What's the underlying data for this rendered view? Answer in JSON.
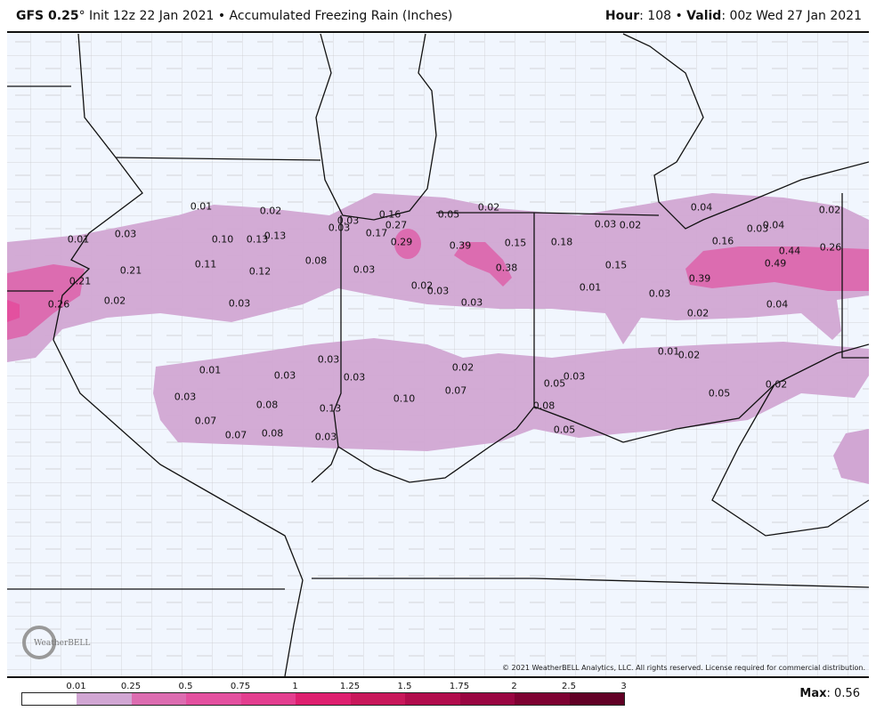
{
  "header": {
    "model": "GFS 0.25",
    "degree": "°",
    "init": " Init 12z 22 Jan 2021 • Accumulated Freezing Rain (Inches)",
    "hour_label": "Hour",
    "hour_value": ": 108 • ",
    "valid_label": "Valid",
    "valid_value": ": 00z Wed 27 Jan 2021"
  },
  "copyright": "© 2021 WeatherBELL Analytics, LLC. All rights reserved. License required for commercial distribution.",
  "logo_text": "WeatherBELL",
  "legend": {
    "ticks": [
      "0.01",
      "0.25",
      "0.5",
      "0.75",
      "1",
      "1.25",
      "1.5",
      "1.75",
      "2",
      "2.5",
      "3"
    ],
    "colors": [
      "#ffffff",
      "#d1a6d3",
      "#dc6cb0",
      "#e3509f",
      "#e33e8f",
      "#de1f6f",
      "#c8175a",
      "#b10c4c",
      "#990541",
      "#7d0131",
      "#610025"
    ]
  },
  "max": {
    "label": "Max",
    "value": ": 0.56"
  },
  "map": {
    "values": [
      "0.01",
      "0.02",
      "0.03",
      "0.01",
      "0.10",
      "0.13",
      "0.13",
      "0.21",
      "0.11",
      "0.12",
      "0.08",
      "0.21",
      "0.26",
      "0.02",
      "0.03",
      "0.03",
      "0.03",
      "0.16",
      "0.27",
      "0.17",
      "0.29",
      "0.05",
      "0.02",
      "0.39",
      "0.15",
      "0.38",
      "0.03",
      "0.02",
      "0.03",
      "0.03",
      "0.18",
      "0.03",
      "0.02",
      "0.15",
      "0.01",
      "0.03",
      "0.04",
      "0.16",
      "0.03",
      "0.04",
      "0.02",
      "0.44",
      "0.49",
      "0.26",
      "0.39",
      "0.04",
      "0.02",
      "0.01",
      "0.03",
      "0.03",
      "0.03",
      "0.02",
      "0.07",
      "0.10",
      "0.03",
      "0.08",
      "0.13",
      "0.07",
      "0.07",
      "0.08",
      "0.03",
      "0.05",
      "0.03",
      "0.08",
      "0.05",
      "0.01",
      "0.02",
      "0.05",
      "0.02"
    ]
  }
}
